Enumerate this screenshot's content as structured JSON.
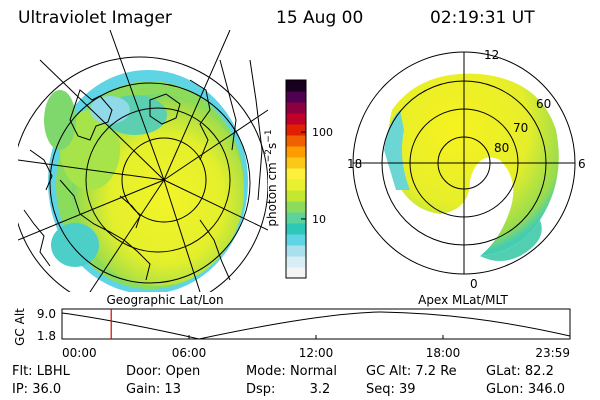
{
  "header": {
    "title": "Ultraviolet Imager",
    "date": "15 Aug 00",
    "time": "02:19:31 UT"
  },
  "colorbar": {
    "unit_label": "photon cm",
    "unit_sup1": "−2",
    "unit_mid": "s",
    "unit_sup2": "−1",
    "ticks": [
      "100",
      "10"
    ],
    "tick_values": [
      100,
      10
    ],
    "colors": [
      "#f4f4f4",
      "#d8eef4",
      "#a8e0ec",
      "#5fd4e4",
      "#2ec8b8",
      "#5cd29c",
      "#8cdc5c",
      "#c4e830",
      "#e8f030",
      "#fcf03c",
      "#fcc818",
      "#fc9c00",
      "#f06000",
      "#e02000",
      "#c00028",
      "#8c0040",
      "#500050",
      "#180020"
    ],
    "log_range": [
      0.32,
      2.6
    ]
  },
  "left_map": {
    "caption": "Geographic Lat/Lon"
  },
  "right_map": {
    "caption": "Apex MLat/MLT",
    "mlt_labels": [
      "12",
      "18",
      "6",
      "0"
    ],
    "mlat_labels": [
      "60",
      "70",
      "80"
    ]
  },
  "altitude_plot": {
    "ylabel": "GC Alt",
    "yticks": [
      "9.0",
      "1.8"
    ],
    "xticks": [
      "00:00",
      "06:00",
      "12:00",
      "18:00",
      "23:59"
    ],
    "marker_time_hours": 2.325,
    "marker_color": "#dd0000"
  },
  "footer": {
    "row1": [
      {
        "label": "Flt:",
        "value": "LBHL"
      },
      {
        "label": "Door:",
        "value": "Open"
      },
      {
        "label": "Mode:",
        "value": "Normal"
      },
      {
        "label": "GC Alt:",
        "value": "7.2 Re"
      },
      {
        "label": "GLat:",
        "value": "82.2"
      }
    ],
    "row2": [
      {
        "label": "IP:",
        "value": "36.0"
      },
      {
        "label": "Gain:",
        "value": "13"
      },
      {
        "label": "Dsp:",
        "value": "3.2"
      },
      {
        "label": "Seq:",
        "value": "39"
      },
      {
        "label": "GLon:",
        "value": "346.0"
      }
    ]
  }
}
